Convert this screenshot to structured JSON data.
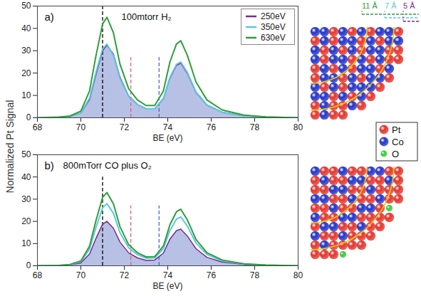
{
  "ylabel": "Normalized Pt Signal",
  "chart_data": [
    {
      "type": "line",
      "panel": "a)",
      "title": "100mtorr H₂",
      "xlabel": "BE (eV)",
      "xlim": [
        68,
        80
      ],
      "xticks": [
        68,
        70,
        72,
        74,
        76,
        78,
        80
      ],
      "ylim": [
        0,
        50
      ],
      "yticks": [
        0,
        10,
        20,
        30,
        40,
        50
      ],
      "grid": false,
      "legend": "top-right",
      "x": [
        68,
        69,
        69.5,
        70,
        70.4,
        70.7,
        71,
        71.2,
        71.5,
        71.8,
        72.2,
        72.6,
        73,
        73.4,
        73.8,
        74.1,
        74.4,
        74.6,
        74.9,
        75.3,
        75.8,
        76.5,
        77.5,
        78.5,
        80
      ],
      "series": [
        {
          "name": "250eV",
          "color": "#7a2b8f",
          "type": "area",
          "values": [
            0,
            0.2,
            0.6,
            2.1,
            8.2,
            19.5,
            30,
            32.5,
            28.5,
            18.2,
            9.8,
            6,
            4.1,
            4.1,
            8.5,
            17.8,
            23.4,
            24.5,
            19.9,
            11.4,
            5.7,
            2.5,
            0.9,
            0.3,
            0
          ]
        },
        {
          "name": "350eV",
          "color": "#5bc8e0",
          "type": "line",
          "values": [
            0,
            0.2,
            0.6,
            2.2,
            8.8,
            20.5,
            30.8,
            33,
            27.9,
            17.6,
            9.5,
            5.9,
            4,
            4,
            8.7,
            18.1,
            23.9,
            25,
            20.3,
            11.6,
            5.8,
            2.5,
            0.9,
            0.3,
            0
          ]
        },
        {
          "name": "630eV",
          "color": "#2e9e3a",
          "type": "line",
          "values": [
            0,
            0.3,
            0.8,
            3,
            12,
            28,
            42,
            45,
            38,
            24,
            13,
            8,
            5.5,
            5.5,
            12,
            25,
            33,
            34.5,
            28,
            16,
            8,
            3.5,
            1.2,
            0.4,
            0
          ]
        }
      ],
      "vlines": [
        {
          "x": 71.0,
          "y": [
            0,
            50
          ],
          "color": "#000000",
          "line_style": "dashed"
        },
        {
          "x": 72.3,
          "y": [
            0,
            27
          ],
          "color": "#e0607a",
          "line_style": "dashed"
        },
        {
          "x": 73.6,
          "y": [
            0,
            27
          ],
          "color": "#5560d0",
          "line_style": "dashed"
        }
      ]
    },
    {
      "type": "line",
      "panel": "b)",
      "title": "800mTorr CO plus O₂",
      "xlabel": "BE (eV)",
      "xlim": [
        68,
        80
      ],
      "xticks": [
        68,
        70,
        72,
        74,
        76,
        78,
        80
      ],
      "ylim": [
        0,
        50
      ],
      "yticks": [
        0,
        10,
        20,
        30,
        40,
        50
      ],
      "grid": false,
      "x": [
        68,
        69,
        69.5,
        70,
        70.4,
        70.7,
        71,
        71.2,
        71.5,
        71.8,
        72.2,
        72.6,
        73,
        73.4,
        73.8,
        74.1,
        74.4,
        74.6,
        74.9,
        75.3,
        75.8,
        76.5,
        77.5,
        78.5,
        80
      ],
      "series": [
        {
          "name": "250eV",
          "color": "#7a2b8f",
          "type": "area",
          "values": [
            0,
            0.1,
            0.4,
            1.3,
            5.3,
            12.4,
            18.7,
            20,
            16.9,
            10.7,
            5.8,
            3.6,
            2.4,
            2.6,
            5.7,
            12,
            15.8,
            16.5,
            13.4,
            7.7,
            3.8,
            1.7,
            0.6,
            0.2,
            0
          ]
        },
        {
          "name": "350eV",
          "color": "#5bc8e0",
          "type": "line",
          "values": [
            0,
            0.2,
            0.5,
            1.9,
            7.5,
            17.4,
            26.1,
            28,
            23.6,
            14.9,
            8.1,
            5,
            3.4,
            3.5,
            7.7,
            15.9,
            21,
            22,
            17.9,
            10.2,
            5.1,
            2.2,
            0.8,
            0.3,
            0
          ]
        },
        {
          "name": "630eV",
          "color": "#2e9e3a",
          "type": "line",
          "values": [
            0,
            0.2,
            0.6,
            2.2,
            8.8,
            20.5,
            30.8,
            33,
            27.9,
            17.6,
            9.5,
            5.9,
            4,
            4.1,
            8.9,
            18.5,
            24.3,
            25.5,
            20.7,
            11.8,
            5.9,
            2.6,
            0.9,
            0.3,
            0
          ]
        }
      ],
      "vlines": [
        {
          "x": 71.0,
          "y": [
            0,
            40
          ],
          "color": "#000000",
          "line_style": "dashed"
        },
        {
          "x": 72.3,
          "y": [
            0,
            27
          ],
          "color": "#e0607a",
          "line_style": "dashed"
        },
        {
          "x": 73.6,
          "y": [
            0,
            27
          ],
          "color": "#5560d0",
          "line_style": "dashed"
        }
      ]
    }
  ],
  "diagram": {
    "depth_labels": [
      {
        "label": "11 Å",
        "color": "#2e9e3a"
      },
      {
        "label": "7 Å",
        "color": "#5bc8e0"
      },
      {
        "label": "5 Å",
        "color": "#7a2b8f"
      }
    ],
    "legend": [
      {
        "label": "Pt",
        "color": "#e8332a"
      },
      {
        "label": "Co",
        "color": "#2233cc"
      },
      {
        "label": "O",
        "color": "#33cc33"
      }
    ]
  }
}
